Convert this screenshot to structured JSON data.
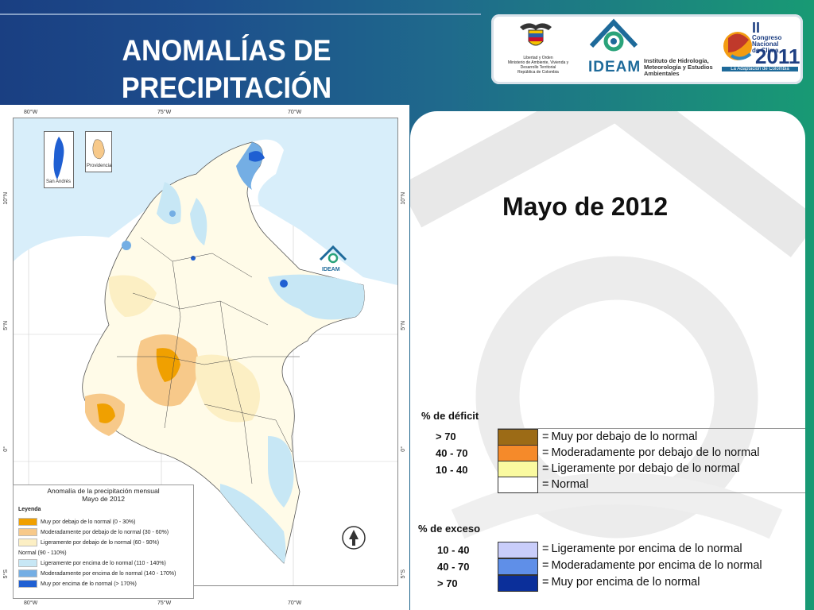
{
  "header": {
    "title_line1": "ANOMALÍAS DE",
    "title_line2": "PRECIPITACIÓN"
  },
  "logos": {
    "ministry_text": "Libertad y Orden\nMinisterio de Ambiente, Vivienda y Desarrollo Territorial\nRepública de Colombia",
    "ideam_word": "IDEAM",
    "ideam_institute": "Instituto de Hidrología, Meteorología y Estudios Ambientales",
    "congreso_line1": "Congreso",
    "congreso_line2": "Nacional",
    "congreso_line3": "de Clima",
    "congreso_numeral": "II",
    "congreso_year": "2011",
    "congreso_tagline": "La Adaptación de Colombia"
  },
  "map": {
    "coords_top": [
      "80°W",
      "75°W",
      "70°W"
    ],
    "coords_bottom": [
      "80°W",
      "75°W",
      "70°W"
    ],
    "coords_left": [
      "10°N",
      "5°N",
      "0°",
      "5°S"
    ],
    "coords_right": [
      "10°N",
      "5°N",
      "0°",
      "5°S"
    ],
    "inset_san_andres": "San Andrés",
    "inset_providencia": "Providencia",
    "watermark_logo": "IDEAM",
    "legend": {
      "title_line1": "Anomalía de la precipitación mensual",
      "title_line2": "Mayo de 2012",
      "heading": "Leyenda",
      "items": [
        {
          "label": "Muy por debajo de lo normal (0 - 30%)",
          "color": "#f0a000"
        },
        {
          "label": "Moderadamente por debajo de lo normal (30 - 60%)",
          "color": "#f7c98a"
        },
        {
          "label": "Ligeramente por debajo de lo normal (60 - 90%)",
          "color": "#fcefc4"
        },
        {
          "label": "Normal (90 - 110%)",
          "color": "#ffffff"
        },
        {
          "label": "Ligeramente por encima de lo normal (110 - 140%)",
          "color": "#c7e7f5"
        },
        {
          "label": "Moderadamente por encima de lo normal (140 - 170%)",
          "color": "#74aee4"
        },
        {
          "label": "Muy por encima de lo normal (> 170%)",
          "color": "#1f5fd2"
        }
      ]
    }
  },
  "panel": {
    "period": "Mayo de 2012",
    "deficit_heading": "% de déficit",
    "excess_heading": "% de exceso",
    "deficit": [
      {
        "range": "> 70",
        "color": "#9c6b16",
        "label": "Muy por debajo de lo normal"
      },
      {
        "range": "40 -  70",
        "color": "#f58a2a",
        "label": "Moderadamente por debajo de lo normal"
      },
      {
        "range": "10 -  40",
        "color": "#fafaa0",
        "label": "Ligeramente por debajo de lo normal"
      },
      {
        "range": "",
        "color": "#ffffff",
        "label": "Normal"
      }
    ],
    "excess": [
      {
        "range": "10 -  40",
        "color": "#c9cdfa",
        "label": "Ligeramente por encima de lo normal"
      },
      {
        "range": "40 -  70",
        "color": "#5f8fe8",
        "label": "Moderadamente por encima de lo normal"
      },
      {
        "range": "> 70",
        "color": "#0b2f9a",
        "label": "Muy por encima de lo normal"
      }
    ],
    "equals": "="
  }
}
